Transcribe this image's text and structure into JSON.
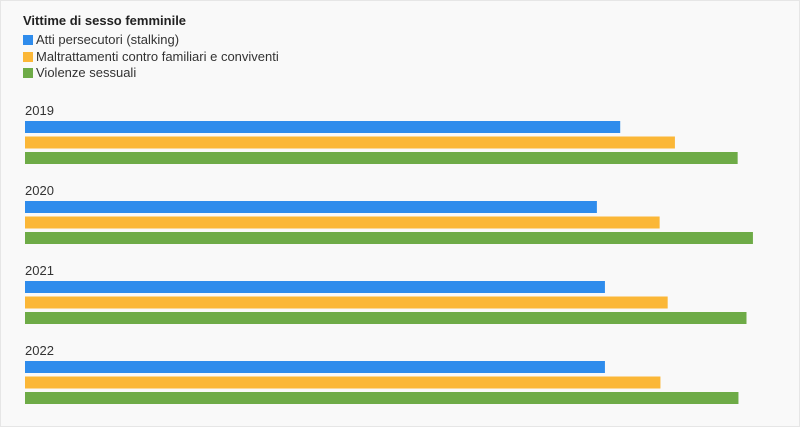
{
  "chart_data": {
    "type": "bar",
    "orientation": "horizontal",
    "title": "Vittime di sesso femminile",
    "categories": [
      "2019",
      "2020",
      "2021",
      "2022"
    ],
    "series": [
      {
        "name": "Atti persecutori (stalking)",
        "color": "#2f8cec",
        "values": [
          74.0,
          71.1,
          72.1,
          72.1
        ]
      },
      {
        "name": "Maltrattamenti contro familiari e conviventi",
        "color": "#fbb737",
        "values": [
          80.8,
          78.9,
          79.9,
          79.0
        ]
      },
      {
        "name": "Violenze sessuali",
        "color": "#6eab47",
        "values": [
          88.6,
          90.5,
          89.7,
          88.7
        ]
      }
    ],
    "xlim": [
      0,
      92
    ],
    "grid": false,
    "legend": "top-left",
    "axis_labels_shown": false
  }
}
